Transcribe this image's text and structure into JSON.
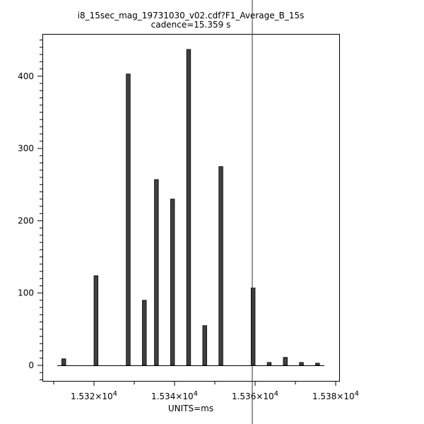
{
  "chart_data": {
    "type": "bar",
    "title": "i8_15sec_mag_19731030_v02.cdf?F1_Average_B_15s",
    "subtitle": "cadence=15.359 s",
    "xlabel": "UNITS=ms",
    "ylabel": "",
    "xlim": [
      15310,
      15380
    ],
    "ylim": [
      -22,
      458
    ],
    "grid": false,
    "x_ticks": [
      {
        "value": 15320,
        "mantissa": "1.532",
        "exp": "4"
      },
      {
        "value": 15340,
        "mantissa": "1.534",
        "exp": "4"
      },
      {
        "value": 15360,
        "mantissa": "1.536",
        "exp": "4"
      },
      {
        "value": 15380,
        "mantissa": "1.538",
        "exp": "4"
      }
    ],
    "y_ticks": [
      0,
      100,
      200,
      300,
      400
    ],
    "bar_color": "#404040",
    "x": [
      15312.5,
      15320.5,
      15328.5,
      15332.5,
      15335.5,
      15339.5,
      15343.5,
      15347.5,
      15351.5,
      15359.5,
      15363.5,
      15367.5,
      15371.5,
      15375.5
    ],
    "values": [
      9,
      124,
      403,
      90,
      257,
      230,
      437,
      55,
      275,
      107,
      4,
      11,
      4,
      3
    ],
    "cursor_x": 15359.3
  }
}
